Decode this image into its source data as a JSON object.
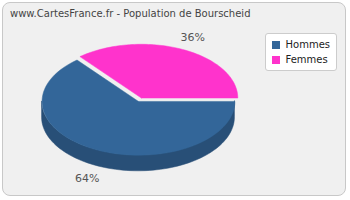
{
  "chart_data": {
    "type": "pie",
    "title": "www.CartesFrance.fr - Population de Bourscheid",
    "categories": [
      "Hommes",
      "Femmes"
    ],
    "values": [
      64,
      36
    ],
    "value_labels": [
      "64%",
      "36%"
    ],
    "colors": [
      "#336699",
      "#ff33cc"
    ],
    "data_labels": true,
    "legend": "top-right"
  }
}
